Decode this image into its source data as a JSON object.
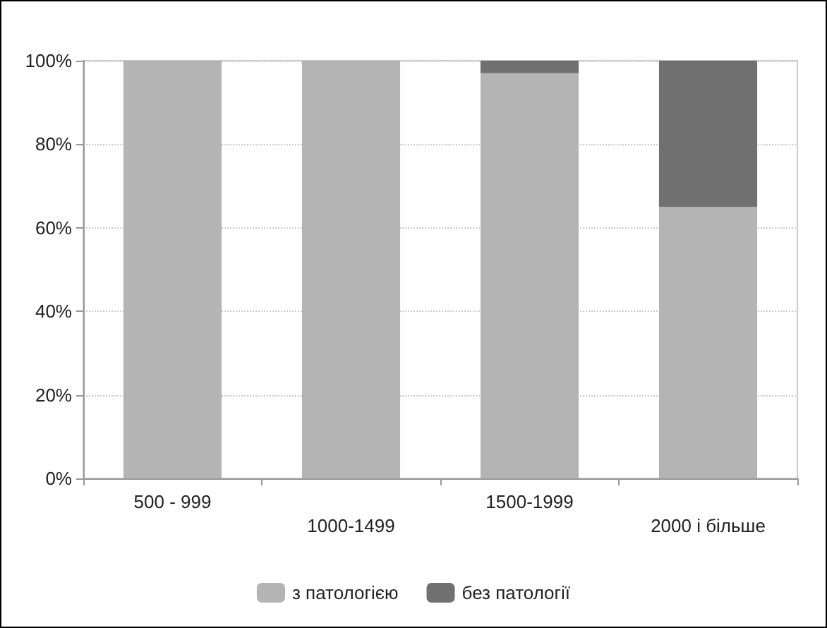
{
  "chart_data": {
    "type": "bar",
    "stacked": true,
    "categories": [
      "500 - 999",
      "1000-1499",
      "1500-1999",
      "2000 і більше"
    ],
    "series": [
      {
        "name": "з патологією",
        "color": "#b4b4b4",
        "values": [
          100,
          100,
          97,
          65
        ]
      },
      {
        "name": "без патології",
        "color": "#707070",
        "values": [
          0,
          0,
          3,
          35
        ]
      }
    ],
    "ylim": [
      0,
      100
    ],
    "yticks": [
      {
        "value": 0,
        "label": "0%"
      },
      {
        "value": 20,
        "label": "20%"
      },
      {
        "value": 40,
        "label": "40%"
      },
      {
        "value": 60,
        "label": "60%"
      },
      {
        "value": 80,
        "label": "80%"
      },
      {
        "value": 100,
        "label": "100%"
      }
    ],
    "grid": "y",
    "legend": "bottom"
  }
}
